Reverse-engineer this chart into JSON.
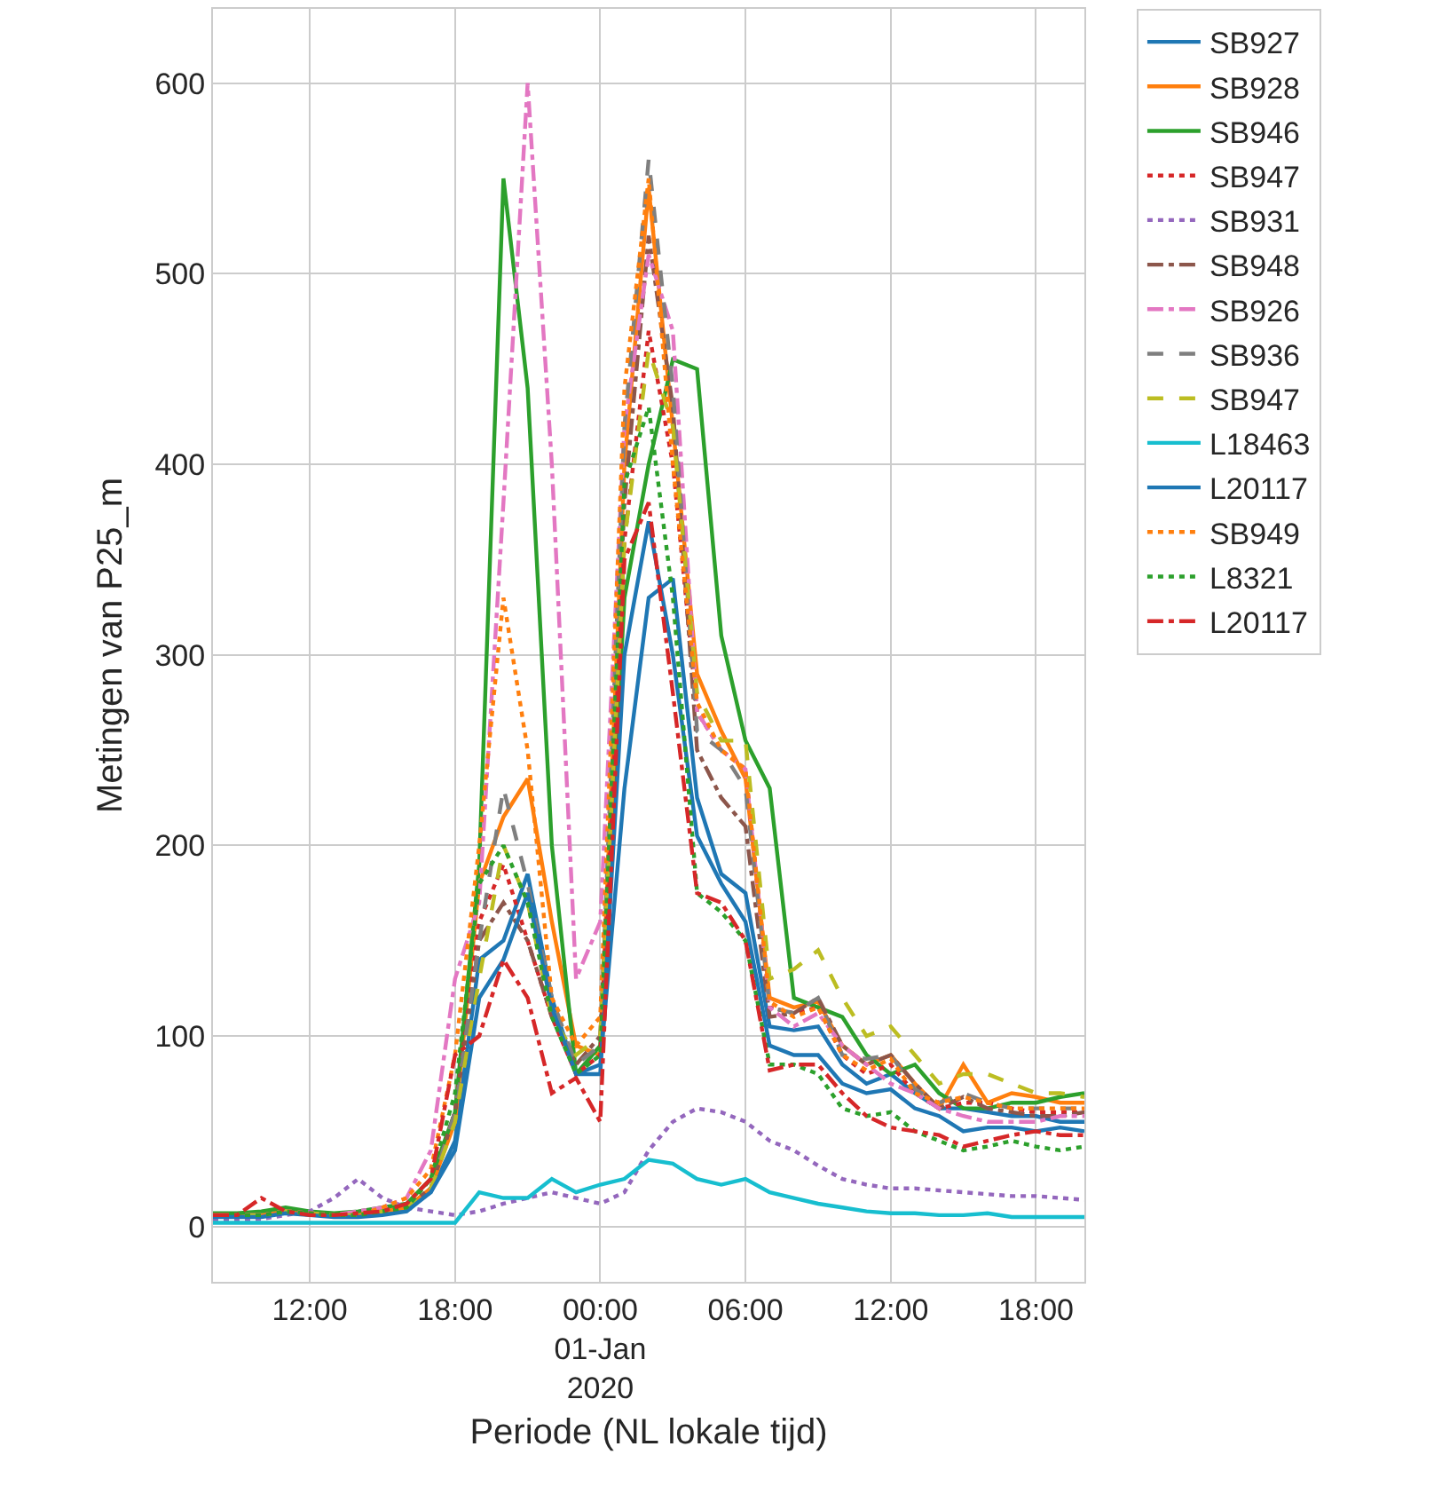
{
  "chart_data": {
    "type": "line",
    "xlabel": "Periode (NL lokale tijd)",
    "ylabel": "Metingen van P25_m",
    "x": [
      "2019-12-31T08:00",
      "2019-12-31T09:00",
      "2019-12-31T10:00",
      "2019-12-31T11:00",
      "2019-12-31T12:00",
      "2019-12-31T13:00",
      "2019-12-31T14:00",
      "2019-12-31T15:00",
      "2019-12-31T16:00",
      "2019-12-31T17:00",
      "2019-12-31T18:00",
      "2019-12-31T19:00",
      "2019-12-31T20:00",
      "2019-12-31T21:00",
      "2019-12-31T22:00",
      "2019-12-31T23:00",
      "2020-01-01T00:00",
      "2020-01-01T01:00",
      "2020-01-01T02:00",
      "2020-01-01T03:00",
      "2020-01-01T04:00",
      "2020-01-01T05:00",
      "2020-01-01T06:00",
      "2020-01-01T07:00",
      "2020-01-01T08:00",
      "2020-01-01T09:00",
      "2020-01-01T10:00",
      "2020-01-01T11:00",
      "2020-01-01T12:00",
      "2020-01-01T13:00",
      "2020-01-01T14:00",
      "2020-01-01T15:00",
      "2020-01-01T16:00",
      "2020-01-01T17:00",
      "2020-01-01T18:00",
      "2020-01-01T19:00",
      "2020-01-01T20:00"
    ],
    "series": [
      {
        "name": "SB927",
        "color": "#1f77b4",
        "line_style": "solid",
        "values": [
          6,
          6,
          6,
          8,
          7,
          6,
          6,
          7,
          9,
          18,
          45,
          140,
          150,
          185,
          120,
          80,
          85,
          230,
          330,
          340,
          225,
          185,
          175,
          105,
          103,
          105,
          85,
          75,
          80,
          70,
          62,
          62,
          60,
          58,
          58,
          55,
          55
        ]
      },
      {
        "name": "SB928",
        "color": "#ff7f0e",
        "line_style": "solid",
        "values": [
          6,
          6,
          6,
          8,
          7,
          6,
          6,
          8,
          10,
          20,
          55,
          180,
          215,
          235,
          160,
          95,
          90,
          400,
          545,
          420,
          290,
          260,
          235,
          120,
          115,
          118,
          95,
          85,
          90,
          75,
          62,
          85,
          65,
          70,
          68,
          65,
          65
        ]
      },
      {
        "name": "SB946",
        "color": "#2ca02c",
        "line_style": "solid",
        "values": [
          7,
          7,
          8,
          10,
          8,
          7,
          8,
          10,
          12,
          25,
          60,
          190,
          550,
          440,
          200,
          80,
          95,
          330,
          400,
          455,
          450,
          310,
          255,
          230,
          120,
          115,
          110,
          90,
          80,
          85,
          70,
          62,
          62,
          65,
          65,
          68,
          70
        ]
      },
      {
        "name": "SB947",
        "color": "#d62728",
        "line_style": "dotted",
        "values": [
          6,
          6,
          6,
          8,
          7,
          6,
          6,
          8,
          10,
          20,
          60,
          160,
          190,
          150,
          110,
          80,
          90,
          360,
          470,
          400,
          270,
          250,
          240,
          115,
          112,
          115,
          90,
          80,
          85,
          70,
          62,
          65,
          65,
          62,
          60,
          60,
          60
        ]
      },
      {
        "name": "SB931",
        "color": "#9467bd",
        "line_style": "dotted",
        "values": [
          3,
          3,
          4,
          6,
          8,
          15,
          25,
          15,
          10,
          8,
          6,
          8,
          12,
          15,
          18,
          15,
          12,
          18,
          40,
          55,
          62,
          60,
          55,
          45,
          40,
          32,
          25,
          22,
          20,
          20,
          19,
          18,
          17,
          16,
          16,
          15,
          14
        ]
      },
      {
        "name": "SB948",
        "color": "#8c564b",
        "line_style": "dashdot",
        "values": [
          6,
          6,
          6,
          8,
          7,
          6,
          6,
          8,
          10,
          20,
          60,
          150,
          170,
          150,
          110,
          85,
          100,
          380,
          520,
          430,
          250,
          225,
          210,
          110,
          112,
          120,
          95,
          85,
          90,
          75,
          62,
          68,
          62,
          60,
          58,
          58,
          60
        ]
      },
      {
        "name": "SB926",
        "color": "#e377c2",
        "line_style": "dashdot",
        "values": [
          6,
          6,
          6,
          8,
          7,
          6,
          8,
          10,
          15,
          40,
          130,
          170,
          380,
          600,
          400,
          130,
          160,
          420,
          510,
          470,
          270,
          250,
          240,
          115,
          105,
          112,
          95,
          85,
          75,
          70,
          62,
          58,
          55,
          55,
          55,
          58,
          58
        ]
      },
      {
        "name": "SB936",
        "color": "#7f7f7f",
        "line_style": "dashed",
        "values": [
          6,
          6,
          6,
          8,
          7,
          6,
          6,
          8,
          10,
          20,
          60,
          150,
          230,
          180,
          120,
          85,
          95,
          420,
          560,
          440,
          260,
          250,
          230,
          115,
          112,
          120,
          90,
          88,
          90,
          72,
          65,
          70,
          65,
          62,
          62,
          62,
          62
        ]
      },
      {
        "name": "SB947",
        "color": "#bcbd22",
        "line_style": "dashed",
        "values": [
          6,
          6,
          6,
          8,
          7,
          6,
          6,
          8,
          10,
          20,
          55,
          130,
          200,
          170,
          110,
          90,
          100,
          360,
          460,
          420,
          280,
          255,
          255,
          130,
          135,
          145,
          120,
          100,
          105,
          90,
          75,
          80,
          80,
          75,
          70,
          70,
          68
        ]
      },
      {
        "name": "L18463",
        "color": "#17becf",
        "line_style": "solid",
        "values": [
          2,
          2,
          2,
          2,
          2,
          2,
          2,
          2,
          2,
          2,
          2,
          18,
          15,
          15,
          25,
          18,
          22,
          25,
          35,
          33,
          25,
          22,
          25,
          18,
          15,
          12,
          10,
          8,
          7,
          7,
          6,
          6,
          7,
          5,
          5,
          5,
          5
        ]
      },
      {
        "name": "L20117",
        "color": "#1f77b4",
        "line_style": "solid",
        "values": [
          5,
          5,
          5,
          7,
          6,
          5,
          5,
          6,
          8,
          18,
          40,
          120,
          140,
          175,
          115,
          80,
          80,
          300,
          370,
          300,
          205,
          180,
          160,
          95,
          90,
          90,
          75,
          70,
          72,
          62,
          58,
          50,
          52,
          52,
          50,
          52,
          50
        ]
      },
      {
        "name": "SB949",
        "color": "#ff7f0e",
        "line_style": "dotted",
        "values": [
          6,
          6,
          6,
          8,
          7,
          6,
          6,
          10,
          15,
          30,
          90,
          200,
          330,
          250,
          120,
          95,
          110,
          440,
          550,
          400,
          275,
          250,
          240,
          118,
          110,
          115,
          90,
          82,
          88,
          70,
          65,
          68,
          65,
          62,
          62,
          62,
          62
        ]
      },
      {
        "name": "L8321",
        "color": "#2ca02c",
        "line_style": "dotted",
        "values": [
          6,
          6,
          6,
          8,
          7,
          6,
          6,
          8,
          10,
          25,
          70,
          180,
          200,
          170,
          110,
          80,
          90,
          390,
          430,
          330,
          175,
          165,
          150,
          85,
          85,
          80,
          62,
          58,
          60,
          50,
          45,
          40,
          42,
          45,
          42,
          40,
          42
        ]
      },
      {
        "name": "L20117",
        "color": "#d62728",
        "line_style": "dashdot",
        "values": [
          6,
          6,
          15,
          8,
          6,
          6,
          7,
          8,
          12,
          25,
          90,
          100,
          140,
          120,
          70,
          78,
          55,
          350,
          380,
          280,
          175,
          170,
          150,
          82,
          85,
          85,
          70,
          58,
          52,
          50,
          48,
          42,
          45,
          48,
          50,
          48,
          48
        ]
      }
    ],
    "xlim": [
      "2019-12-31T08:00",
      "2020-01-01T20:00"
    ],
    "xticks": [
      {
        "value": "2019-12-31T12:00",
        "label": "12:00"
      },
      {
        "value": "2019-12-31T18:00",
        "label": "18:00"
      },
      {
        "value": "2020-01-01T00:00",
        "label": "00:00\n01-Jan\n2020"
      },
      {
        "value": "2020-01-01T06:00",
        "label": "06:00"
      },
      {
        "value": "2020-01-01T12:00",
        "label": "12:00"
      },
      {
        "value": "2020-01-01T18:00",
        "label": "18:00"
      }
    ],
    "ylim": [
      -29,
      639
    ],
    "yticks": [
      0,
      100,
      200,
      300,
      400,
      500,
      600
    ],
    "grid": true,
    "legend": "top right",
    "marker": "none"
  }
}
